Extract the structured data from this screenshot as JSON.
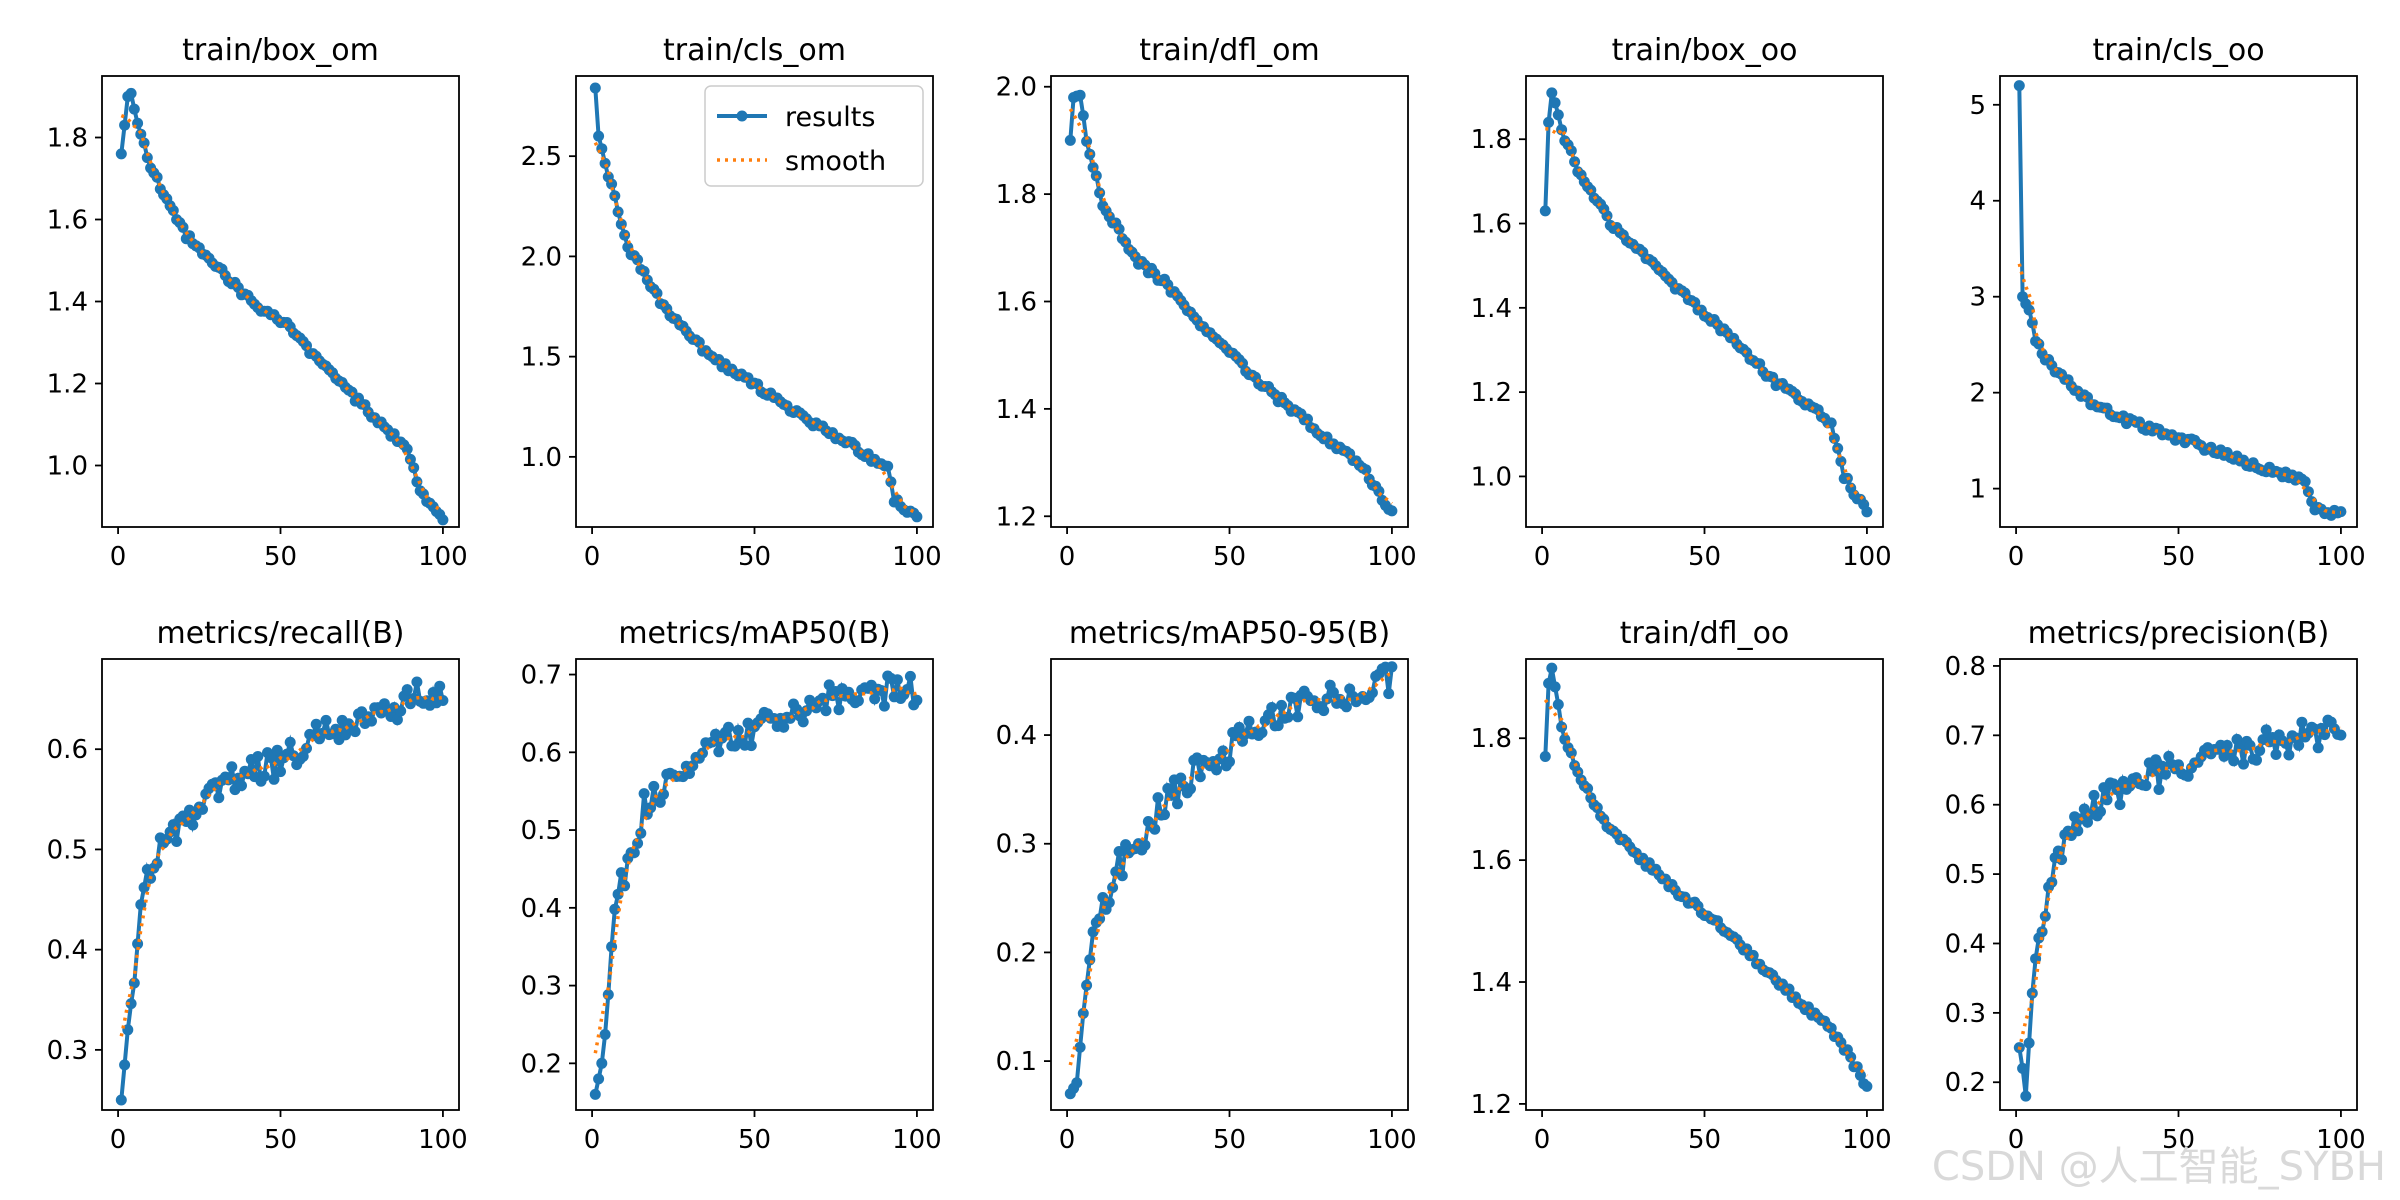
{
  "watermark": "CSDN @人工智能_SYBH",
  "legend": {
    "results_label": "results",
    "smooth_label": "smooth",
    "placement": "upper-right (train/cls_om)"
  },
  "colors": {
    "results": "#1f77b4",
    "smooth": "#ff7f0e",
    "axes": "#000000",
    "background": "#ffffff"
  },
  "chart_data": [
    {
      "type": "line",
      "title": "train/box_om",
      "xlim": [
        0,
        100
      ],
      "ylim": [
        0.85,
        1.95
      ],
      "xticks": [
        0,
        50,
        100
      ],
      "yticks": [
        1.0,
        1.2,
        1.4,
        1.6,
        1.8
      ],
      "grid": false,
      "x": [
        1,
        100
      ],
      "shape": [
        [
          0,
          1.76
        ],
        [
          2,
          1.9
        ],
        [
          3,
          1.915
        ],
        [
          5,
          1.83
        ],
        [
          10,
          1.71
        ],
        [
          20,
          1.56
        ],
        [
          30,
          1.48
        ],
        [
          40,
          1.4
        ],
        [
          50,
          1.35
        ],
        [
          60,
          1.26
        ],
        [
          70,
          1.18
        ],
        [
          80,
          1.1
        ],
        [
          88,
          1.04
        ],
        [
          92,
          0.94
        ],
        [
          100,
          0.86
        ]
      ]
    },
    {
      "type": "line",
      "title": "train/cls_om",
      "xlim": [
        0,
        100
      ],
      "ylim": [
        0.65,
        2.9
      ],
      "xticks": [
        0,
        50,
        100
      ],
      "yticks": [
        1.0,
        1.5,
        2.0,
        2.5
      ],
      "grid": false,
      "x": [
        1,
        100
      ],
      "shape": [
        [
          0,
          2.84
        ],
        [
          1,
          2.6
        ],
        [
          5,
          2.35
        ],
        [
          10,
          2.05
        ],
        [
          20,
          1.78
        ],
        [
          30,
          1.58
        ],
        [
          40,
          1.45
        ],
        [
          50,
          1.35
        ],
        [
          60,
          1.24
        ],
        [
          70,
          1.14
        ],
        [
          80,
          1.05
        ],
        [
          90,
          0.94
        ],
        [
          92,
          0.78
        ],
        [
          100,
          0.7
        ]
      ]
    },
    {
      "type": "line",
      "title": "train/dfl_om",
      "xlim": [
        0,
        100
      ],
      "ylim": [
        1.18,
        2.02
      ],
      "xticks": [
        0,
        50,
        100
      ],
      "yticks": [
        1.2,
        1.4,
        1.6,
        1.8,
        2.0
      ],
      "grid": false,
      "x": [
        1,
        100
      ],
      "shape": [
        [
          0,
          1.9
        ],
        [
          1,
          1.98
        ],
        [
          3,
          1.985
        ],
        [
          5,
          1.9
        ],
        [
          10,
          1.78
        ],
        [
          20,
          1.68
        ],
        [
          30,
          1.63
        ],
        [
          40,
          1.56
        ],
        [
          50,
          1.5
        ],
        [
          60,
          1.44
        ],
        [
          70,
          1.39
        ],
        [
          80,
          1.34
        ],
        [
          90,
          1.29
        ],
        [
          100,
          1.2
        ]
      ]
    },
    {
      "type": "line",
      "title": "train/box_oo",
      "xlim": [
        0,
        100
      ],
      "ylim": [
        0.88,
        1.95
      ],
      "xticks": [
        0,
        50,
        100
      ],
      "yticks": [
        1.0,
        1.2,
        1.4,
        1.6,
        1.8
      ],
      "grid": false,
      "x": [
        1,
        100
      ],
      "shape": [
        [
          0,
          1.63
        ],
        [
          1,
          1.84
        ],
        [
          2,
          1.91
        ],
        [
          5,
          1.82
        ],
        [
          10,
          1.73
        ],
        [
          20,
          1.6
        ],
        [
          30,
          1.53
        ],
        [
          40,
          1.45
        ],
        [
          50,
          1.38
        ],
        [
          60,
          1.31
        ],
        [
          70,
          1.23
        ],
        [
          80,
          1.17
        ],
        [
          88,
          1.13
        ],
        [
          92,
          1.0
        ],
        [
          100,
          0.9
        ]
      ]
    },
    {
      "type": "line",
      "title": "train/cls_oo",
      "xlim": [
        0,
        100
      ],
      "ylim": [
        0.6,
        5.3
      ],
      "xticks": [
        0,
        50,
        100
      ],
      "yticks": [
        1,
        2,
        3,
        4,
        5
      ],
      "grid": false,
      "x": [
        1,
        100
      ],
      "shape": [
        [
          0,
          5.2
        ],
        [
          1,
          3.0
        ],
        [
          3,
          2.85
        ],
        [
          5,
          2.55
        ],
        [
          10,
          2.25
        ],
        [
          20,
          1.95
        ],
        [
          30,
          1.75
        ],
        [
          40,
          1.62
        ],
        [
          50,
          1.52
        ],
        [
          60,
          1.4
        ],
        [
          70,
          1.27
        ],
        [
          80,
          1.17
        ],
        [
          88,
          1.07
        ],
        [
          91,
          0.8
        ],
        [
          100,
          0.72
        ]
      ]
    },
    {
      "type": "line",
      "title": "metrics/recall(B)",
      "xlim": [
        0,
        100
      ],
      "ylim": [
        0.24,
        0.69
      ],
      "xticks": [
        0,
        50,
        100
      ],
      "yticks": [
        0.3,
        0.4,
        0.5,
        0.6
      ],
      "grid": false,
      "x": [
        1,
        100
      ],
      "shape": [
        [
          0,
          0.25
        ],
        [
          2,
          0.32
        ],
        [
          4,
          0.38
        ],
        [
          6,
          0.44
        ],
        [
          8,
          0.47
        ],
        [
          10,
          0.49
        ],
        [
          15,
          0.51
        ],
        [
          20,
          0.525
        ],
        [
          30,
          0.565
        ],
        [
          40,
          0.575
        ],
        [
          50,
          0.59
        ],
        [
          60,
          0.615
        ],
        [
          70,
          0.625
        ],
        [
          80,
          0.64
        ],
        [
          90,
          0.65
        ],
        [
          100,
          0.665
        ]
      ]
    },
    {
      "type": "line",
      "title": "metrics/mAP50(B)",
      "xlim": [
        0,
        100
      ],
      "ylim": [
        0.14,
        0.72
      ],
      "xticks": [
        0,
        50,
        100
      ],
      "yticks": [
        0.2,
        0.3,
        0.4,
        0.5,
        0.6,
        0.7
      ],
      "grid": false,
      "x": [
        1,
        100
      ],
      "shape": [
        [
          0,
          0.16
        ],
        [
          2,
          0.2
        ],
        [
          4,
          0.28
        ],
        [
          6,
          0.38
        ],
        [
          8,
          0.43
        ],
        [
          10,
          0.46
        ],
        [
          15,
          0.53
        ],
        [
          20,
          0.55
        ],
        [
          30,
          0.59
        ],
        [
          40,
          0.615
        ],
        [
          50,
          0.63
        ],
        [
          60,
          0.65
        ],
        [
          70,
          0.665
        ],
        [
          80,
          0.675
        ],
        [
          90,
          0.68
        ],
        [
          100,
          0.68
        ]
      ]
    },
    {
      "type": "line",
      "title": "metrics/mAP50-95(B)",
      "xlim": [
        0,
        100
      ],
      "ylim": [
        0.055,
        0.47
      ],
      "xticks": [
        0,
        50,
        100
      ],
      "yticks": [
        0.1,
        0.2,
        0.3,
        0.4
      ],
      "grid": false,
      "x": [
        1,
        100
      ],
      "shape": [
        [
          0,
          0.07
        ],
        [
          2,
          0.08
        ],
        [
          4,
          0.13
        ],
        [
          6,
          0.19
        ],
        [
          8,
          0.22
        ],
        [
          10,
          0.24
        ],
        [
          15,
          0.28
        ],
        [
          20,
          0.3
        ],
        [
          30,
          0.34
        ],
        [
          40,
          0.37
        ],
        [
          50,
          0.39
        ],
        [
          60,
          0.41
        ],
        [
          70,
          0.425
        ],
        [
          80,
          0.435
        ],
        [
          90,
          0.445
        ],
        [
          100,
          0.452
        ]
      ]
    },
    {
      "type": "line",
      "title": "train/dfl_oo",
      "xlim": [
        0,
        100
      ],
      "ylim": [
        1.19,
        1.93
      ],
      "xticks": [
        0,
        50,
        100
      ],
      "yticks": [
        1.2,
        1.4,
        1.6,
        1.8
      ],
      "grid": false,
      "x": [
        1,
        100
      ],
      "shape": [
        [
          0,
          1.77
        ],
        [
          1,
          1.89
        ],
        [
          2,
          1.915
        ],
        [
          5,
          1.82
        ],
        [
          10,
          1.74
        ],
        [
          20,
          1.65
        ],
        [
          30,
          1.6
        ],
        [
          40,
          1.55
        ],
        [
          50,
          1.51
        ],
        [
          60,
          1.46
        ],
        [
          70,
          1.41
        ],
        [
          80,
          1.36
        ],
        [
          90,
          1.31
        ],
        [
          100,
          1.22
        ]
      ]
    },
    {
      "type": "line",
      "title": "metrics/precision(B)",
      "xlim": [
        0,
        100
      ],
      "ylim": [
        0.16,
        0.81
      ],
      "xticks": [
        0,
        50,
        100
      ],
      "yticks": [
        0.2,
        0.3,
        0.4,
        0.5,
        0.6,
        0.7,
        0.8
      ],
      "grid": false,
      "x": [
        1,
        100
      ],
      "shape": [
        [
          0,
          0.25
        ],
        [
          1,
          0.22
        ],
        [
          2,
          0.18
        ],
        [
          4,
          0.32
        ],
        [
          6,
          0.4
        ],
        [
          8,
          0.46
        ],
        [
          10,
          0.5
        ],
        [
          15,
          0.55
        ],
        [
          20,
          0.58
        ],
        [
          30,
          0.62
        ],
        [
          40,
          0.64
        ],
        [
          50,
          0.655
        ],
        [
          60,
          0.665
        ],
        [
          70,
          0.68
        ],
        [
          80,
          0.69
        ],
        [
          90,
          0.7
        ],
        [
          100,
          0.705
        ]
      ]
    }
  ]
}
